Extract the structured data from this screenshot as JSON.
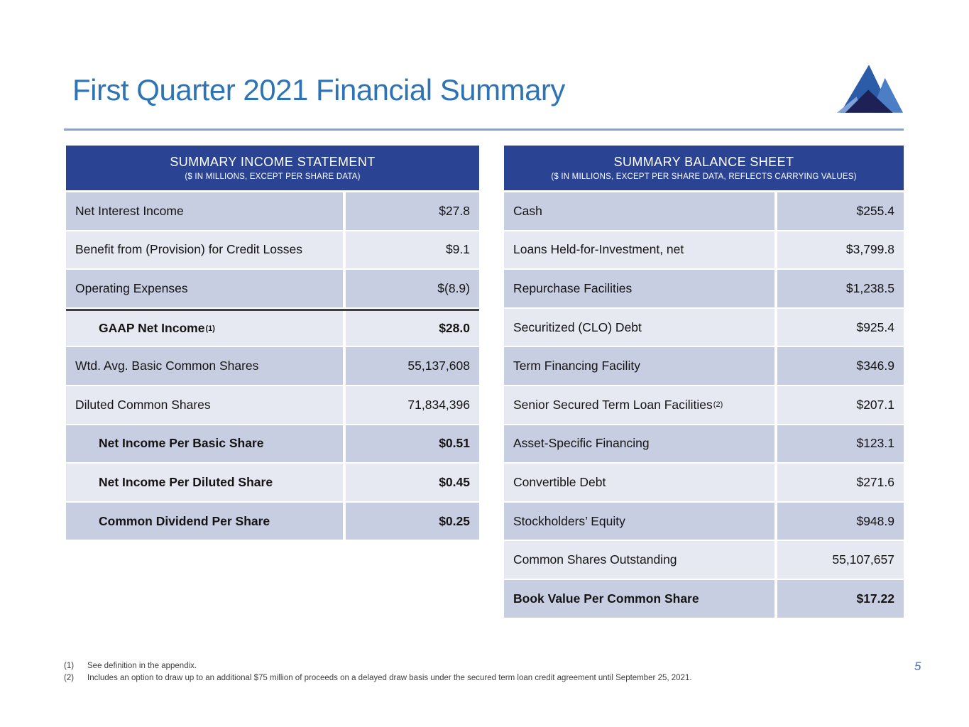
{
  "page": {
    "title": "First Quarter 2021 Financial Summary",
    "page_number": "5",
    "colors": {
      "title_blue": "#2E74B5",
      "rule_blue": "#7FA6D9",
      "header_navy": "#2A4392",
      "row_dark": "#C8CEE1",
      "row_light": "#E7E9F2",
      "separator_dark": "#404040",
      "page_number_blue": "#4472C4"
    }
  },
  "logo": {
    "name": "mountain-logo",
    "colors": {
      "peak_main": "#2C5BA8",
      "peak_right": "#4C7EC6",
      "peak_dark": "#1D2155",
      "peak_light": "#7EA2D8"
    }
  },
  "tables": {
    "income": {
      "title": "SUMMARY INCOME STATEMENT",
      "subtitle": "($ IN MILLIONS, EXCEPT PER SHARE DATA)",
      "rows": [
        {
          "label": "Net Interest Income",
          "value": "$27.8",
          "shade": "dark"
        },
        {
          "label": "Benefit from (Provision) for Credit Losses",
          "value": "$9.1",
          "shade": "light"
        },
        {
          "label": "Operating Expenses",
          "value": "$(8.9)",
          "shade": "dark"
        },
        {
          "label": "GAAP Net Income",
          "sup": "(1)",
          "value": "$28.0",
          "shade": "light",
          "bold": true,
          "indent": true,
          "separator_top": true
        },
        {
          "label": "Wtd. Avg. Basic Common Shares",
          "value": "55,137,608",
          "shade": "dark"
        },
        {
          "label": "Diluted Common Shares",
          "value": "71,834,396",
          "shade": "light"
        },
        {
          "label": "Net Income Per Basic Share",
          "value": "$0.51",
          "shade": "dark",
          "bold": true,
          "indent": true
        },
        {
          "label": "Net Income Per Diluted Share",
          "value": "$0.45",
          "shade": "light",
          "bold": true,
          "indent": true
        },
        {
          "label": "Common Dividend Per Share",
          "value": "$0.25",
          "shade": "dark",
          "bold": true,
          "indent": true
        }
      ]
    },
    "balance": {
      "title": "SUMMARY BALANCE SHEET",
      "subtitle": "($ IN MILLIONS, EXCEPT PER SHARE DATA, REFLECTS CARRYING VALUES)",
      "rows": [
        {
          "label": "Cash",
          "value": "$255.4",
          "shade": "dark"
        },
        {
          "label": "Loans Held-for-Investment, net",
          "value": "$3,799.8",
          "shade": "light"
        },
        {
          "label": "Repurchase Facilities",
          "value": "$1,238.5",
          "shade": "dark"
        },
        {
          "label": "Securitized (CLO) Debt",
          "value": "$925.4",
          "shade": "light"
        },
        {
          "label": "Term Financing Facility",
          "value": "$346.9",
          "shade": "dark"
        },
        {
          "label": "Senior Secured Term Loan Facilities",
          "sup": "(2)",
          "value": "$207.1",
          "shade": "light"
        },
        {
          "label": "Asset-Specific Financing",
          "value": "$123.1",
          "shade": "dark"
        },
        {
          "label": "Convertible Debt",
          "value": "$271.6",
          "shade": "light"
        },
        {
          "label": "Stockholders’ Equity",
          "value": "$948.9",
          "shade": "dark"
        },
        {
          "label": "Common Shares Outstanding",
          "value": "55,107,657",
          "shade": "light"
        },
        {
          "label": "Book Value Per Common Share",
          "value": "$17.22",
          "shade": "dark",
          "bold": true
        }
      ]
    }
  },
  "footnotes": [
    {
      "marker": "(1)",
      "text": "See definition in the appendix."
    },
    {
      "marker": "(2)",
      "text": "Includes an option to draw up to an additional $75 million of proceeds on a delayed draw basis under the secured term loan credit agreement until September 25, 2021."
    }
  ]
}
